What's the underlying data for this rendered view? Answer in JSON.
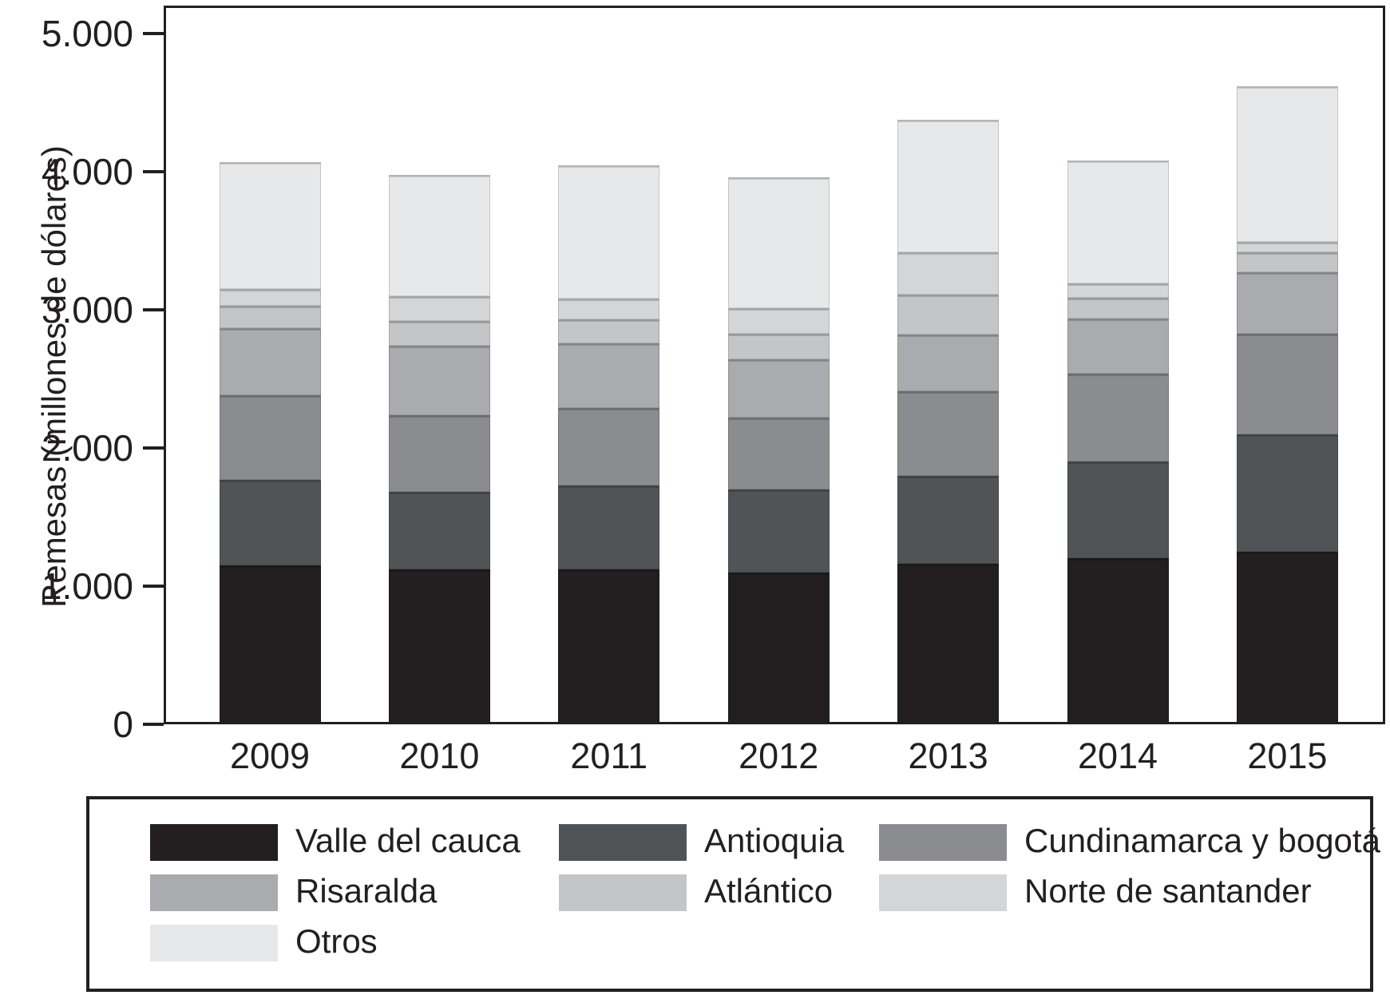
{
  "figure": {
    "y_axis_title": "Remesas (millones de dólares)"
  },
  "chart_data": {
    "type": "bar",
    "stacked": true,
    "title": "",
    "xlabel": "",
    "ylabel": "Remesas (millones de dólares)",
    "categories": [
      "2009",
      "2010",
      "2011",
      "2012",
      "2013",
      "2014",
      "2015"
    ],
    "series": [
      {
        "name": "Valle del cauca",
        "color": "#231f20",
        "values": [
          1150,
          1120,
          1120,
          1100,
          1160,
          1200,
          1250
        ]
      },
      {
        "name": "Antioquia",
        "color": "#515457",
        "values": [
          620,
          560,
          610,
          600,
          640,
          700,
          850
        ]
      },
      {
        "name": "Cundinamarca y bogotá",
        "color": "#8a8c8f",
        "values": [
          610,
          560,
          560,
          520,
          610,
          640,
          730
        ]
      },
      {
        "name": "Risaralda",
        "color": "#a9abae",
        "values": [
          490,
          500,
          470,
          420,
          410,
          400,
          440
        ]
      },
      {
        "name": "Atlántico",
        "color": "#c3c5c7",
        "values": [
          160,
          180,
          170,
          190,
          290,
          150,
          150
        ]
      },
      {
        "name": "Norte de santander",
        "color": "#d3d5d6",
        "values": [
          120,
          180,
          150,
          180,
          310,
          100,
          70
        ]
      },
      {
        "name": "Otros",
        "color": "#e7e8e9",
        "values": [
          920,
          880,
          970,
          950,
          960,
          890,
          1130
        ]
      }
    ],
    "totals": [
      4070,
      3980,
      4050,
      3960,
      4380,
      4080,
      4620
    ],
    "ylim": [
      0,
      5200
    ],
    "ytick_values": [
      0,
      1000,
      2000,
      3000,
      4000,
      5000
    ],
    "ytick_labels": [
      "0",
      "1.000",
      "2.000",
      "3.000",
      "4.000",
      "5.000"
    ],
    "grid": false,
    "legend_position": "bottom"
  },
  "legend": {
    "items": [
      {
        "label": "Valle del cauca",
        "color": "#231f20"
      },
      {
        "label": "Antioquia",
        "color": "#515457"
      },
      {
        "label": "Cundinamarca y bogotá",
        "color": "#8a8c8f"
      },
      {
        "label": "Risaralda",
        "color": "#a9abae"
      },
      {
        "label": "Atlántico",
        "color": "#c3c5c7"
      },
      {
        "label": "Norte de santander",
        "color": "#d3d5d6"
      },
      {
        "label": "Otros",
        "color": "#e7e8e9"
      }
    ]
  },
  "colors": {
    "axis": "#231f20",
    "background": "#ffffff"
  }
}
